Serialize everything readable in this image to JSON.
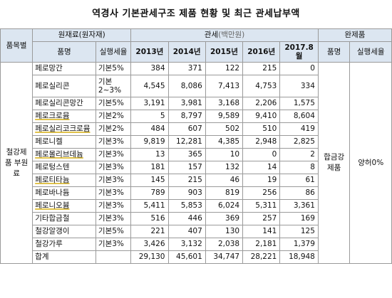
{
  "title": "역경사 기본관세구조 제품 현황 및 최근 관세납부액",
  "header": {
    "category": "품목별",
    "raw_material": "원재료(원자재)",
    "tariff": "관세",
    "tariff_unit": "(백만원)",
    "finished_product": "완제품",
    "item_name": "품명",
    "applied_tax": "실행세율",
    "years": [
      "2013년",
      "2014년",
      "2015년",
      "2016년",
      "2017.8월"
    ],
    "fp_item_name": "품명",
    "fp_applied_tax": "실행세율"
  },
  "group_label": "철강제품 부원료",
  "finished": {
    "name": "합금강 제품",
    "rate": "양허0%"
  },
  "rows": [
    {
      "name": "페로망간",
      "rate": "기본5%",
      "v": [
        "384",
        "371",
        "122",
        "215",
        "0"
      ],
      "hl": false
    },
    {
      "name": "페로실리콘",
      "rate": "기본 2~3%",
      "v": [
        "4,545",
        "8,086",
        "7,413",
        "4,753",
        "334"
      ],
      "hl": false,
      "wrap": true
    },
    {
      "name": "페로실리콘망간",
      "rate": "기본5%",
      "v": [
        "3,191",
        "3,981",
        "3,168",
        "2,206",
        "1,575"
      ],
      "hl": false
    },
    {
      "name": "페로크로뮴",
      "rate": "기본2%",
      "v": [
        "5",
        "8,797",
        "9,589",
        "9,410",
        "8,604"
      ],
      "hl": true
    },
    {
      "name": "페로실리코크로뮴",
      "rate": "기본2%",
      "v": [
        "484",
        "607",
        "502",
        "510",
        "419"
      ],
      "hl": true
    },
    {
      "name": "페로니켈",
      "rate": "기본3%",
      "v": [
        "9,819",
        "12,281",
        "4,385",
        "2,948",
        "2,825"
      ],
      "hl": false
    },
    {
      "name": "페로몰리브데늄",
      "rate": "기본3%",
      "v": [
        "13",
        "365",
        "10",
        "0",
        "2"
      ],
      "hl": true
    },
    {
      "name": "페로텅스텐",
      "rate": "기본3%",
      "v": [
        "181",
        "157",
        "132",
        "14",
        "8"
      ],
      "hl": false
    },
    {
      "name": "페로티타늄",
      "rate": "기본3%",
      "v": [
        "145",
        "215",
        "46",
        "19",
        "61"
      ],
      "hl": true
    },
    {
      "name": "페로바나듐",
      "rate": "기본3%",
      "v": [
        "789",
        "903",
        "819",
        "256",
        "86"
      ],
      "hl": false
    },
    {
      "name": "페로니오븀",
      "rate": "기본3%",
      "v": [
        "5,411",
        "5,853",
        "6,024",
        "5,311",
        "3,361"
      ],
      "hl": true
    },
    {
      "name": "기타합금철",
      "rate": "기본3%",
      "v": [
        "516",
        "446",
        "369",
        "257",
        "169"
      ],
      "hl": false
    },
    {
      "name": "철강알갱이",
      "rate": "기본5%",
      "v": [
        "221",
        "407",
        "130",
        "141",
        "125"
      ],
      "hl": false
    },
    {
      "name": "철강가루",
      "rate": "기본3%",
      "v": [
        "3,426",
        "3,132",
        "2,038",
        "2,181",
        "1,379"
      ],
      "hl": false
    }
  ],
  "total": {
    "label": "합계",
    "v": [
      "29,130",
      "45,601",
      "34,747",
      "28,221",
      "18,948"
    ]
  }
}
